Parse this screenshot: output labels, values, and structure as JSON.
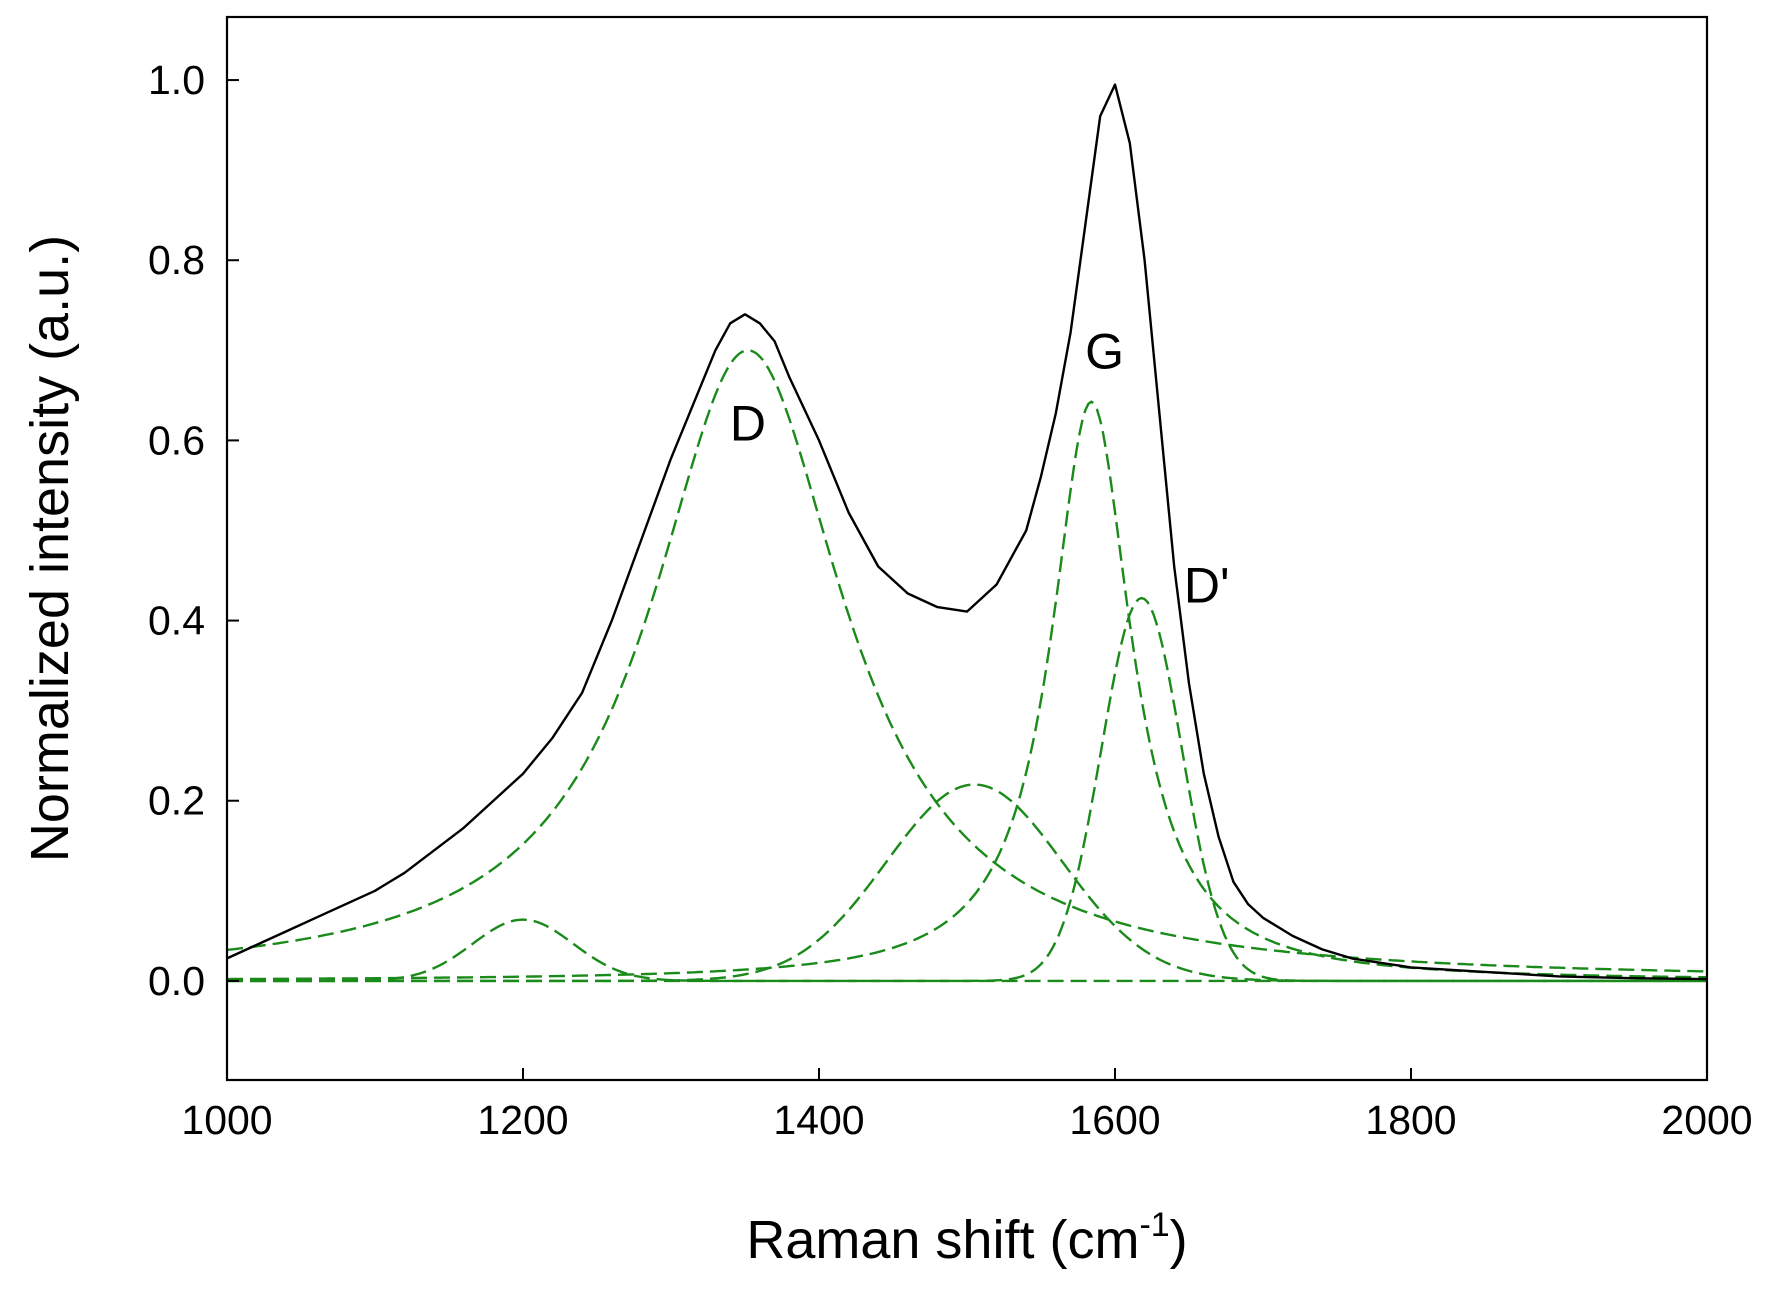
{
  "chart_data": {
    "type": "line",
    "xlabel": "Raman shift (cm",
    "xlabel_superscript": "-1",
    "xlabel_suffix": ")",
    "ylabel": "Normalized intensity (a.u.)",
    "xlim": [
      1000,
      2000
    ],
    "ylim": [
      -0.11,
      1.07
    ],
    "x_ticks": [
      1000,
      1200,
      1400,
      1600,
      1800,
      2000
    ],
    "x_tick_labels": [
      "1000",
      "1200",
      "1400",
      "1600",
      "1800",
      "2000"
    ],
    "y_ticks": [
      0.0,
      0.2,
      0.4,
      0.6,
      0.8,
      1.0
    ],
    "y_tick_labels": [
      "0.0",
      "0.2",
      "0.4",
      "0.6",
      "0.8",
      "1.0"
    ],
    "grid": false,
    "colors": {
      "measured": "#000000",
      "fit": "#1a8a1a"
    },
    "measured_spectrum": {
      "style": "solid",
      "x": [
        1000,
        1020,
        1040,
        1060,
        1080,
        1100,
        1120,
        1140,
        1160,
        1180,
        1200,
        1220,
        1240,
        1260,
        1280,
        1300,
        1320,
        1330,
        1340,
        1350,
        1360,
        1370,
        1380,
        1400,
        1420,
        1440,
        1460,
        1480,
        1500,
        1520,
        1540,
        1550,
        1560,
        1570,
        1580,
        1590,
        1600,
        1610,
        1620,
        1630,
        1640,
        1650,
        1660,
        1670,
        1680,
        1690,
        1700,
        1720,
        1740,
        1760,
        1780,
        1800,
        1850,
        1900,
        1950,
        2000
      ],
      "y": [
        0.025,
        0.04,
        0.055,
        0.07,
        0.085,
        0.1,
        0.12,
        0.145,
        0.17,
        0.2,
        0.23,
        0.27,
        0.32,
        0.4,
        0.49,
        0.58,
        0.66,
        0.7,
        0.73,
        0.74,
        0.73,
        0.71,
        0.67,
        0.6,
        0.52,
        0.46,
        0.43,
        0.415,
        0.41,
        0.44,
        0.5,
        0.56,
        0.63,
        0.72,
        0.84,
        0.96,
        0.995,
        0.93,
        0.8,
        0.63,
        0.46,
        0.33,
        0.23,
        0.16,
        0.11,
        0.085,
        0.07,
        0.05,
        0.035,
        0.025,
        0.02,
        0.015,
        0.01,
        0.005,
        0.003,
        0.002
      ]
    },
    "series": [
      {
        "center": 1200,
        "height": 0.068,
        "hwhm": 40,
        "shape": "gaussian"
      },
      {
        "center": 1352,
        "height": 0.7,
        "hwhm": 80,
        "shape": "lorentzian"
      },
      {
        "center": 1505,
        "height": 0.218,
        "hwhm": 70,
        "shape": "gaussian"
      },
      {
        "center": 1584,
        "height": 0.643,
        "hwhm": 33,
        "shape": "lorentzian"
      },
      {
        "center": 1618,
        "height": 0.425,
        "hwhm": 32,
        "shape": "gaussian"
      }
    ],
    "annotations": [
      {
        "text": "D",
        "x": 1352,
        "y": 0.6
      },
      {
        "text": "G",
        "x": 1593,
        "y": 0.68
      },
      {
        "text": "D'",
        "x": 1662,
        "y": 0.42
      }
    ]
  }
}
